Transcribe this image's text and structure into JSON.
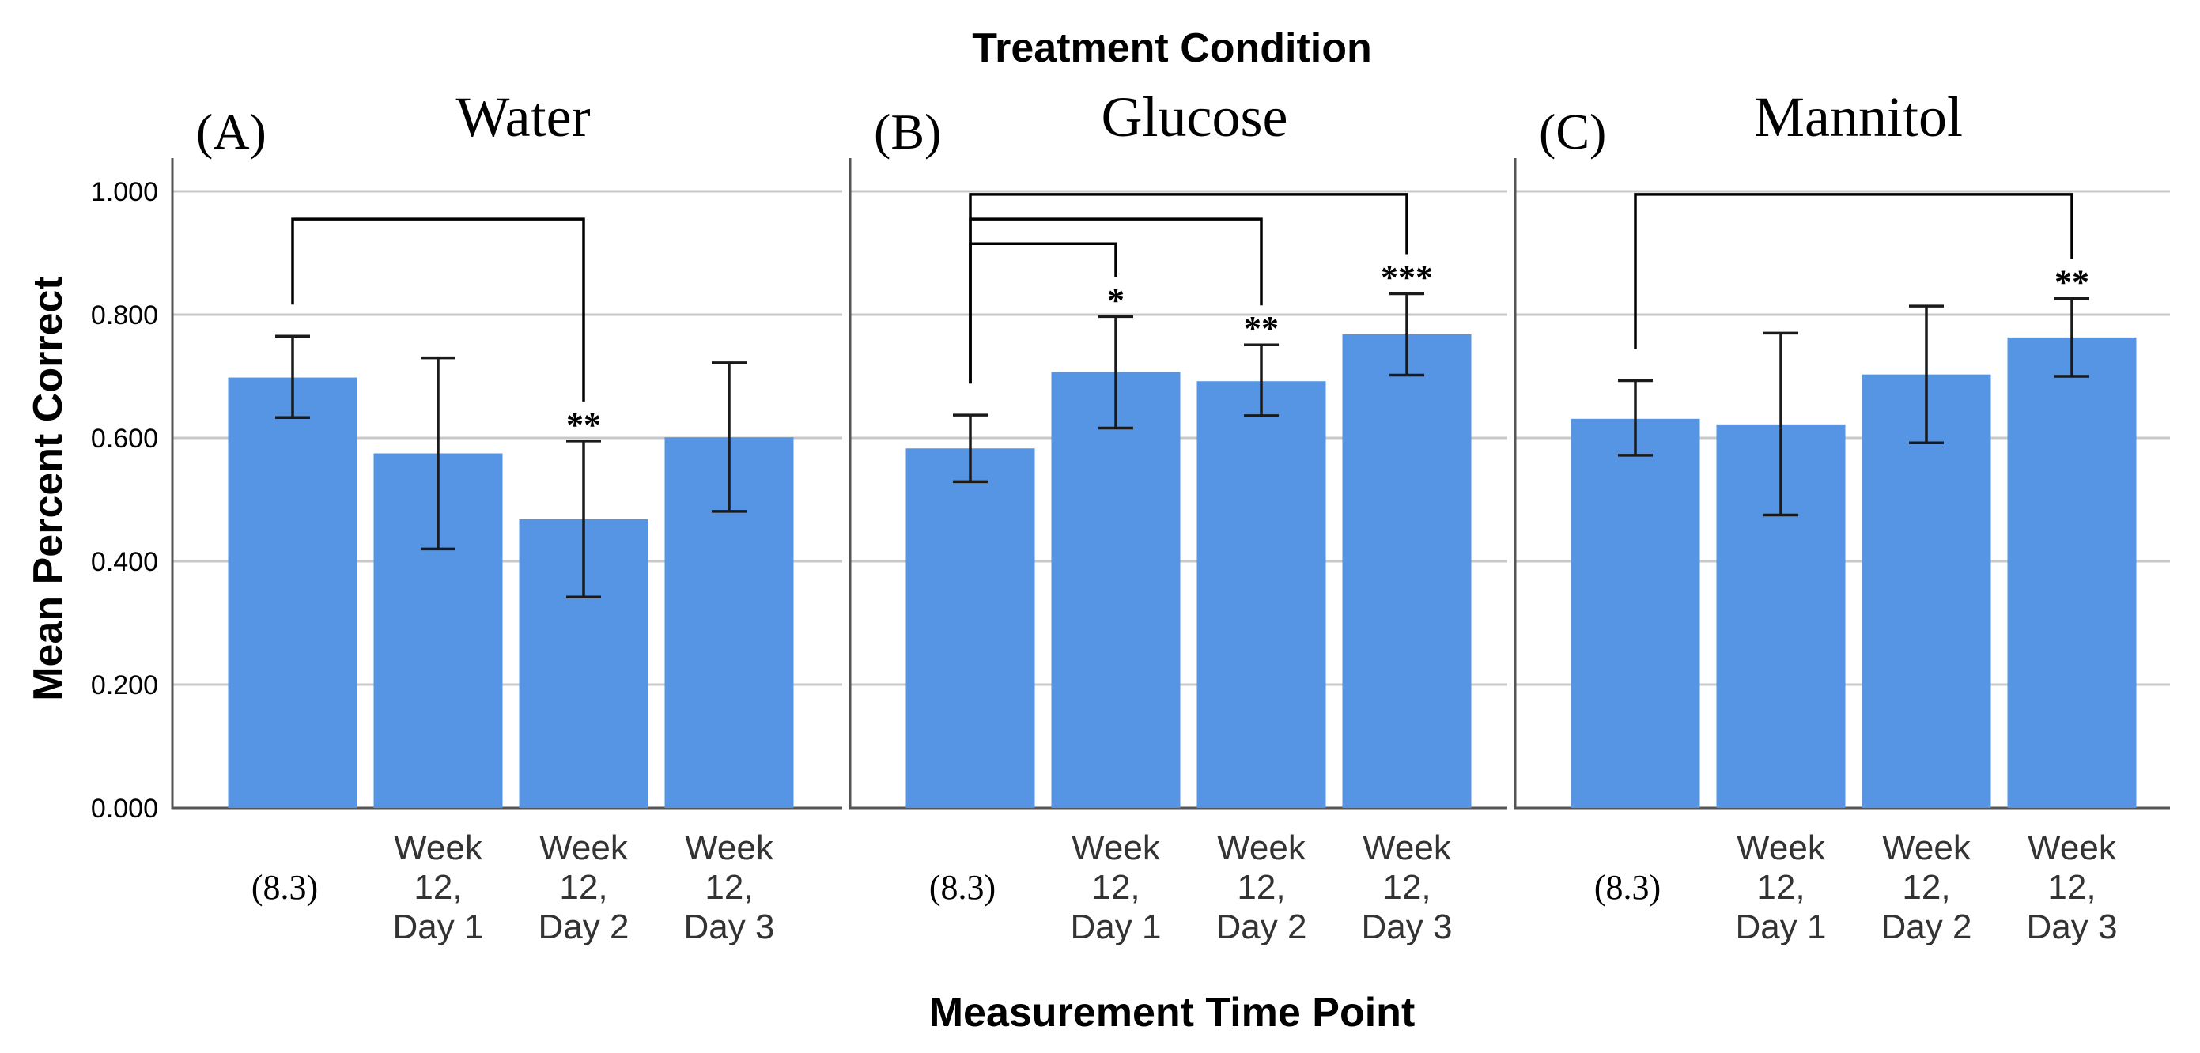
{
  "chart_data": {
    "type": "bar",
    "title": "Treatment Condition",
    "xlabel": "Measurement Time Point",
    "ylabel": "Mean Percent Correct",
    "ylim": [
      0,
      1
    ],
    "yticks": [
      "0.000",
      "0.200",
      "0.400",
      "0.600",
      "0.800",
      "1.000"
    ],
    "grid": true,
    "categories": [
      {
        "lines": [
          "(8.3)"
        ],
        "serif": true
      },
      {
        "lines": [
          "Week",
          "12,",
          "Day 1"
        ],
        "serif": false
      },
      {
        "lines": [
          "Week",
          "12,",
          "Day 2"
        ],
        "serif": false
      },
      {
        "lines": [
          "Week",
          "12,",
          "Day 3"
        ],
        "serif": false
      }
    ],
    "panels": [
      {
        "letter": "(A)",
        "name": "Water",
        "values": [
          0.698,
          0.575,
          0.468,
          0.601
        ],
        "err_low": [
          0.633,
          0.42,
          0.342,
          0.481
        ],
        "err_high": [
          0.765,
          0.73,
          0.595,
          0.722
        ],
        "stars": [
          "",
          "",
          "**",
          ""
        ],
        "brackets": [
          {
            "from": 0,
            "to": 2,
            "level": 0.955
          }
        ]
      },
      {
        "letter": "(B)",
        "name": "Glucose",
        "values": [
          0.583,
          0.707,
          0.692,
          0.768
        ],
        "err_low": [
          0.529,
          0.616,
          0.636,
          0.702
        ],
        "err_high": [
          0.637,
          0.797,
          0.751,
          0.834
        ],
        "stars": [
          "",
          "*",
          "**",
          "***"
        ],
        "brackets": [
          {
            "from": 0,
            "to": 1,
            "level": 0.915
          },
          {
            "from": 0,
            "to": 2,
            "level": 0.955
          },
          {
            "from": 0,
            "to": 3,
            "level": 0.995
          }
        ]
      },
      {
        "letter": "(C)",
        "name": "Mannitol",
        "values": [
          0.631,
          0.622,
          0.703,
          0.763
        ],
        "err_low": [
          0.572,
          0.475,
          0.592,
          0.7
        ],
        "err_high": [
          0.693,
          0.77,
          0.814,
          0.826
        ],
        "stars": [
          "",
          "",
          "",
          "**"
        ],
        "brackets": [
          {
            "from": 0,
            "to": 3,
            "level": 0.995
          }
        ]
      }
    ]
  }
}
